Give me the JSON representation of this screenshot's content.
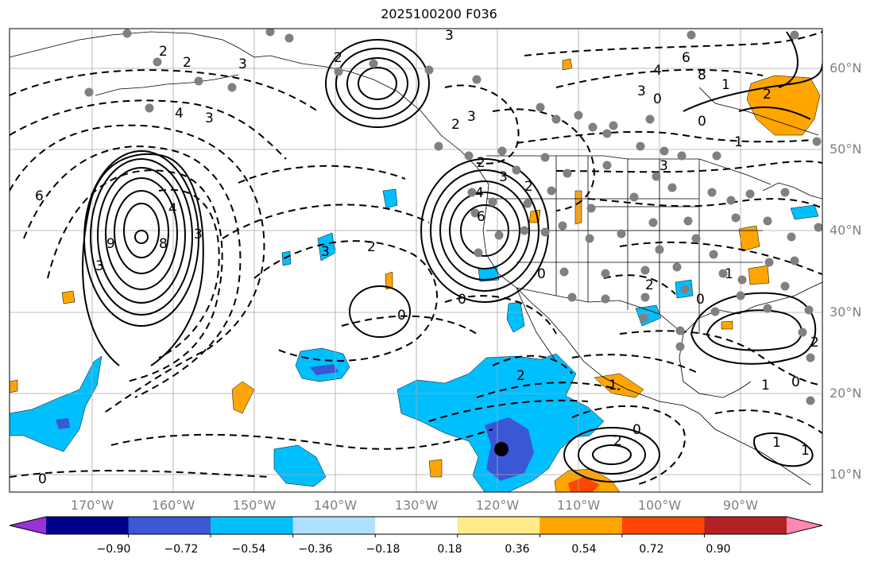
{
  "title": "2025100200 F036",
  "lat_labels": [
    "60°N",
    "50°N",
    "40°N",
    "30°N",
    "20°N",
    "10°N"
  ],
  "lon_labels": [
    "170°W",
    "160°W",
    "150°W",
    "140°W",
    "130°W",
    "120°W",
    "110°W",
    "100°W",
    "90°W"
  ],
  "colorbar": {
    "colors": [
      "#9b30d6",
      "#00008b",
      "#3a57d6",
      "#00bfff",
      "#b0e0ff",
      "#ffffff",
      "#ffeb8a",
      "#ffa500",
      "#ff4500",
      "#b22222",
      "#ff88b0"
    ],
    "tick_labels": [
      "−0.90",
      "−0.72",
      "−0.54",
      "−0.36",
      "−0.18",
      "0.18",
      "0.36",
      "0.54",
      "0.72",
      "0.90"
    ]
  },
  "contour_labels": {
    "upper_left": [
      "2",
      "2",
      "3",
      "4",
      "3",
      "6"
    ],
    "aleutian_low": [
      "2",
      "3",
      "2",
      "3",
      "2"
    ],
    "central_high": [
      "9",
      "8",
      "4",
      "3",
      "3"
    ],
    "mid_pacific": [
      "2",
      "3",
      "0",
      "0"
    ],
    "california_low": [
      "3",
      "4",
      "6",
      "2",
      "0"
    ],
    "canada": [
      "6",
      "4",
      "3",
      "0",
      "8",
      "1",
      "2",
      "0",
      "1",
      "3"
    ],
    "central_us": [
      "2",
      "1",
      "0",
      "1",
      "2"
    ],
    "tropics": [
      "2",
      "0",
      "2",
      "1",
      "1",
      "0",
      "1",
      "0"
    ]
  }
}
